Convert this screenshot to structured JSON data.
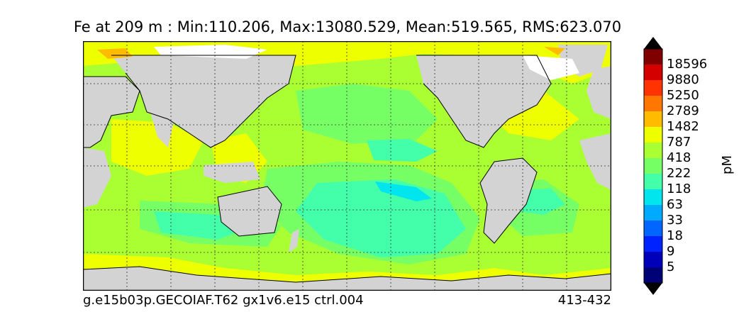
{
  "title": "Fe at 209 m : Min:110.206, Max:13080.529, Mean:519.565, RMS:623.070",
  "footer": {
    "case_name": "g.e15b03p.GECOIAF.T62 gx1v6.e15 ctrl.004",
    "years": "413-432"
  },
  "colorbar": {
    "units": "pM",
    "levels": [
      "18596",
      "9880",
      "5250",
      "2789",
      "1482",
      "787",
      "418",
      "222",
      "118",
      "63",
      "33",
      "18",
      "9",
      "5"
    ],
    "colors": [
      "#800000",
      "#d40000",
      "#ff3300",
      "#ff7700",
      "#ffbb00",
      "#eeff00",
      "#aaff33",
      "#77ff66",
      "#44ffaa",
      "#00e5ee",
      "#00aaff",
      "#0066ff",
      "#0022ff",
      "#0000bb",
      "#000077"
    ],
    "top_triangle_color": "#000000",
    "bottom_triangle_color": "#000000"
  },
  "map": {
    "land_color": "#d3d3d3",
    "missing_color": "#ffffff",
    "gridlines": "dotted"
  }
}
